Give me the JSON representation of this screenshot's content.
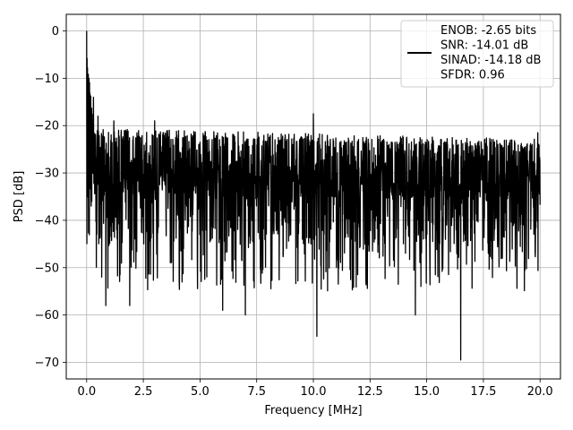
{
  "chart_data": {
    "type": "line",
    "xlabel": "Frequency [MHz]",
    "ylabel": "PSD [dB]",
    "xlim": [
      -0.9,
      20.9
    ],
    "ylim": [
      -73.5,
      3.5
    ],
    "xticks": [
      0.0,
      2.5,
      5.0,
      7.5,
      10.0,
      12.5,
      15.0,
      17.5,
      20.0
    ],
    "xtick_labels": [
      "0.0",
      "2.5",
      "5.0",
      "7.5",
      "10.0",
      "12.5",
      "15.0",
      "17.5",
      "20.0"
    ],
    "yticks": [
      0,
      -10,
      -20,
      -30,
      -40,
      -50,
      -60,
      -70
    ],
    "ytick_labels": [
      "0",
      "−10",
      "−20",
      "−30",
      "−40",
      "−50",
      "−60",
      "−70"
    ],
    "grid": true,
    "legend_position": "top-right",
    "legend_lines": [
      "ENOB: -2.65 bits",
      "SNR: -14.01 dB",
      "SINAD: -14.18 dB",
      "SFDR: 0.96"
    ],
    "series": [
      {
        "color": "#000000",
        "x_range": [
          0.0,
          20.0
        ],
        "description_points": [
          {
            "x": 0.0,
            "y": 0
          },
          {
            "x": 0.05,
            "y": -27
          },
          {
            "x": 0.1,
            "y": -10
          },
          {
            "x": 0.2,
            "y": -37
          },
          {
            "x": 0.3,
            "y": -14
          },
          {
            "x": 0.5,
            "y": -18
          },
          {
            "x": 0.6,
            "y": -43
          },
          {
            "x": 0.85,
            "y": -58
          },
          {
            "x": 1.2,
            "y": -19
          },
          {
            "x": 1.9,
            "y": -58
          },
          {
            "x": 3.0,
            "y": -19
          },
          {
            "x": 6.0,
            "y": -59
          },
          {
            "x": 7.0,
            "y": -60
          },
          {
            "x": 10.0,
            "y": -17.5
          },
          {
            "x": 10.15,
            "y": -64.5
          },
          {
            "x": 14.5,
            "y": -60
          },
          {
            "x": 16.5,
            "y": -69.5
          },
          {
            "x": 19.9,
            "y": -21.5
          }
        ]
      }
    ]
  }
}
